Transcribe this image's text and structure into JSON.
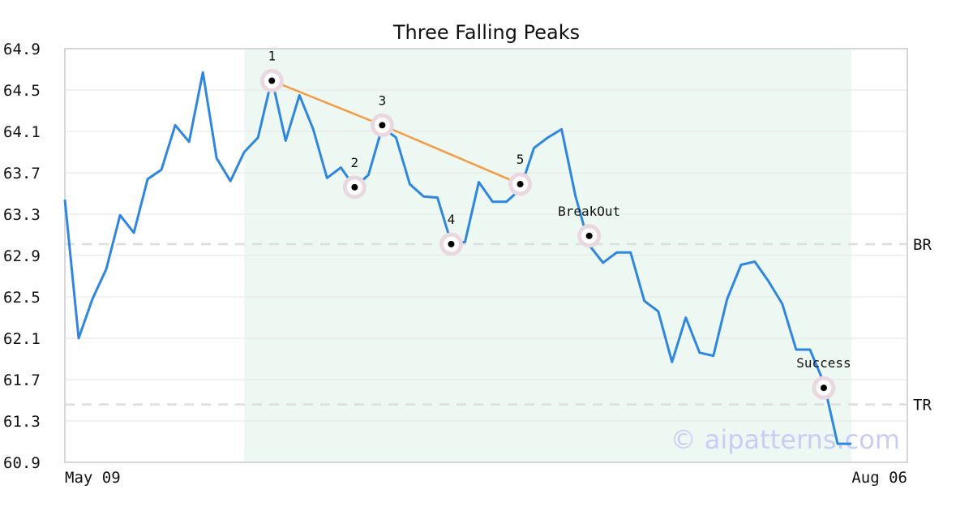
{
  "chart_data": {
    "type": "line",
    "title": "Three Falling Peaks",
    "xlabel": "",
    "ylabel": "",
    "ylim": [
      60.9,
      64.9
    ],
    "yticks": [
      "64.9",
      "64.5",
      "64.1",
      "63.7",
      "63.3",
      "62.9",
      "62.5",
      "62.1",
      "61.7",
      "61.3",
      "60.9"
    ],
    "xtick_labels": [
      "May 09",
      "Aug 06"
    ],
    "grid": true,
    "series": [
      {
        "color": "#2e86de",
        "values": [
          63.44,
          62.1,
          62.48,
          62.77,
          63.29,
          63.12,
          63.64,
          63.73,
          64.16,
          64.0,
          64.67,
          63.84,
          63.62,
          63.9,
          64.04,
          64.61,
          64.01,
          64.45,
          64.12,
          63.65,
          63.75,
          63.56,
          63.68,
          64.14,
          64.04,
          63.59,
          63.47,
          63.46,
          63.02,
          63.03,
          63.61,
          63.42,
          63.42,
          63.54,
          63.94,
          64.04,
          64.12,
          63.48,
          63.0,
          62.83,
          62.93,
          62.93,
          62.46,
          62.36,
          61.87,
          62.3,
          61.96,
          61.93,
          62.48,
          62.81,
          62.84,
          62.65,
          62.43,
          61.99,
          61.99,
          61.67,
          61.08,
          61.08
        ]
      }
    ],
    "pattern_region": {
      "start_index": 13,
      "end_index": 57,
      "color": "#eef8f3"
    },
    "trendline": {
      "color": "#f59a42",
      "points": [
        [
          15,
          64.59
        ],
        [
          23,
          64.16
        ],
        [
          33,
          63.59
        ]
      ]
    },
    "markers": [
      {
        "label": "1",
        "index": 15,
        "y": 64.59
      },
      {
        "label": "2",
        "index": 21,
        "y": 63.56
      },
      {
        "label": "3",
        "index": 23,
        "y": 64.16
      },
      {
        "label": "4",
        "index": 28,
        "y": 63.01
      },
      {
        "label": "5",
        "index": 33,
        "y": 63.59
      },
      {
        "label": "BreakOut",
        "index": 38,
        "y": 63.09
      },
      {
        "label": "Success",
        "index": 55,
        "y": 61.62
      }
    ],
    "reference_lines": [
      {
        "label": "BR",
        "y": 63.01,
        "color": "#dddddd"
      },
      {
        "label": "TR",
        "y": 61.46,
        "color": "#dddddd"
      }
    ],
    "watermark": "© aipatterns.com"
  }
}
